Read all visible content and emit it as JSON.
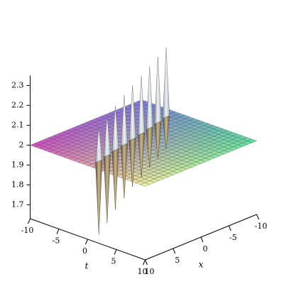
{
  "chart_data": {
    "type": "surface",
    "xlabel": "x",
    "ylabel": "t",
    "xlim": [
      -10,
      10
    ],
    "xticks": [
      -10,
      -5,
      0,
      5,
      10
    ],
    "ylim": [
      -10,
      10
    ],
    "yticks": [
      -10,
      -5,
      0,
      5,
      10
    ],
    "zlim": [
      1.63,
      2.35
    ],
    "zticks": [
      1.7,
      1.8,
      1.9,
      2,
      2.1,
      2.2,
      2.3
    ],
    "level": 2,
    "spikes": {
      "x": [
        8,
        6,
        4,
        2,
        0,
        -2,
        -4,
        -6,
        -8
      ],
      "t": [
        0,
        -0.5,
        -1,
        -1.4,
        -1.9,
        -2.3,
        -2.8,
        -3.3,
        -3.8
      ],
      "max": [
        2.17,
        2.2,
        2.22,
        2.25,
        2.27,
        2.29,
        2.31,
        2.33,
        2.35
      ],
      "min": [
        1.63,
        1.66,
        1.7,
        1.73,
        1.76,
        1.78,
        1.8,
        1.82,
        1.84
      ]
    }
  }
}
